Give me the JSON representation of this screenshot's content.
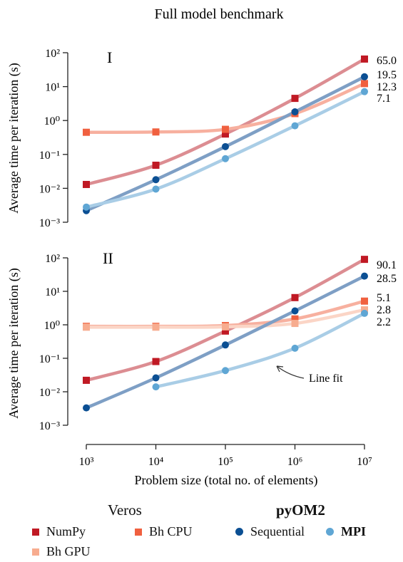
{
  "title": "Full model benchmark",
  "colors": {
    "numpy": "#c01924",
    "bh_cpu": "#f0603f",
    "bh_gpu": "#f7ac8f",
    "sequential": "#0b4f93",
    "mpi": "#5fa6d4",
    "fit_numpy": "#dc8d92",
    "fit_bh_cpu": "#f7b09f",
    "fit_bh_gpu": "#fbd5c6",
    "fit_sequential": "#7e9fc5",
    "fit_mpi": "#a9cde6"
  },
  "chart_data": [
    {
      "type": "scatter",
      "panel_label": "I",
      "ylabel": "Average time per iteration (s)",
      "xscale": "log",
      "yscale": "log",
      "xlim": [
        1000,
        10000000
      ],
      "ylim": [
        0.001,
        100
      ],
      "y_ticks": [
        "10⁻³",
        "10⁻²",
        "10⁻¹",
        "10⁰",
        "10¹",
        "10²"
      ],
      "x": [
        1000,
        10000,
        100000,
        1000000,
        10000000
      ],
      "series": [
        {
          "name": "NumPy",
          "key": "numpy",
          "marker": "square",
          "values": [
            0.013,
            0.048,
            0.4,
            4.5,
            65.0
          ]
        },
        {
          "name": "Bh CPU",
          "key": "bh_cpu",
          "marker": "square",
          "values": [
            0.45,
            0.46,
            0.55,
            1.6,
            12.3
          ]
        },
        {
          "name": "Sequential",
          "key": "sequential",
          "marker": "circle",
          "values": [
            0.0022,
            0.018,
            0.17,
            1.8,
            19.5
          ]
        },
        {
          "name": "MPI",
          "key": "mpi",
          "marker": "circle",
          "values": [
            0.0028,
            0.0095,
            0.075,
            0.7,
            7.1
          ]
        }
      ],
      "end_labels": [
        "65.0",
        "19.5",
        "12.3",
        "7.1"
      ]
    },
    {
      "type": "scatter",
      "panel_label": "II",
      "ylabel": "Average time per iteration (s)",
      "xlabel": "Problem size (total no. of elements)",
      "xscale": "log",
      "yscale": "log",
      "xlim": [
        1000,
        10000000
      ],
      "ylim": [
        0.001,
        100
      ],
      "x_ticks": [
        "10³",
        "10⁴",
        "10⁵",
        "10⁶",
        "10⁷"
      ],
      "y_ticks": [
        "10⁻³",
        "10⁻²",
        "10⁻¹",
        "10⁰",
        "10¹",
        "10²"
      ],
      "x": [
        1000,
        10000,
        100000,
        1000000,
        10000000
      ],
      "series": [
        {
          "name": "NumPy",
          "key": "numpy",
          "marker": "square",
          "values": [
            0.022,
            0.08,
            0.65,
            6.5,
            90.1
          ]
        },
        {
          "name": "Bh CPU",
          "key": "bh_cpu",
          "marker": "square",
          "values": [
            0.9,
            0.9,
            0.95,
            1.5,
            5.1
          ]
        },
        {
          "name": "Bh GPU",
          "key": "bh_gpu",
          "marker": "square",
          "values": [
            0.85,
            0.85,
            0.87,
            1.1,
            2.8
          ]
        },
        {
          "name": "Sequential",
          "key": "sequential",
          "marker": "circle",
          "values": [
            0.0033,
            0.026,
            0.25,
            2.6,
            28.5
          ]
        },
        {
          "name": "MPI",
          "key": "mpi",
          "marker": "circle",
          "values": [
            null,
            0.014,
            0.043,
            0.2,
            2.2
          ]
        }
      ],
      "end_labels": [
        "90.1",
        "28.5",
        "5.1",
        "2.8",
        "2.2"
      ],
      "annotation": "Line fit"
    }
  ],
  "legend": {
    "group1_title": "Veros",
    "group2_title": "pyOM2",
    "items": [
      {
        "label": "NumPy",
        "key": "numpy",
        "marker": "square"
      },
      {
        "label": "Bh CPU",
        "key": "bh_cpu",
        "marker": "square"
      },
      {
        "label": "Sequential",
        "key": "sequential",
        "marker": "circle"
      },
      {
        "label": "MPI",
        "key": "mpi",
        "marker": "circle"
      },
      {
        "label": "Bh GPU",
        "key": "bh_gpu",
        "marker": "square"
      }
    ]
  }
}
